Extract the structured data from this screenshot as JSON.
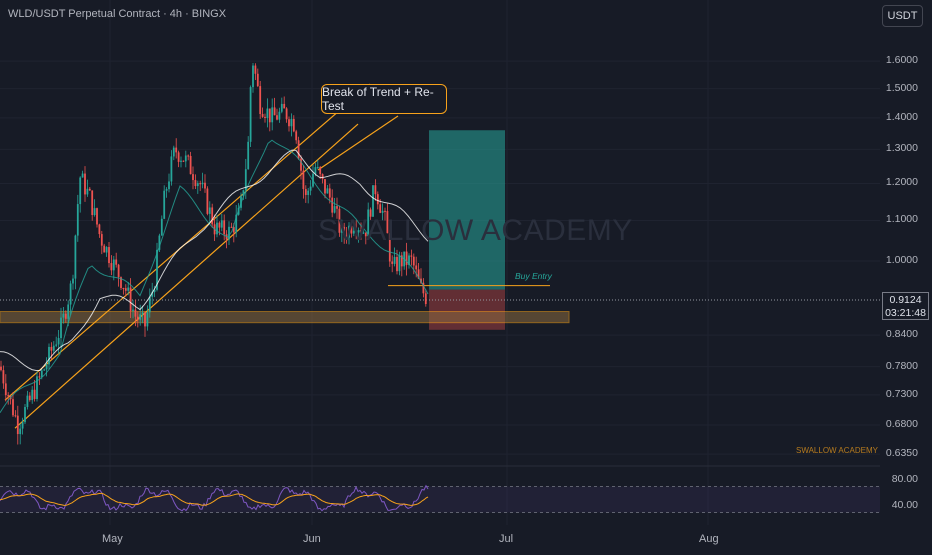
{
  "header": {
    "symbol_title": "WLD/USDT Perpetual Contract · 4h · BINGX",
    "currency_button": "USDT"
  },
  "price_axis": {
    "labels": [
      "1.6000",
      "1.5000",
      "1.4000",
      "1.3000",
      "1.2000",
      "1.1000",
      "1.0000",
      "0.8400",
      "0.7800",
      "0.7300",
      "0.6800",
      "0.6350"
    ],
    "current_price": "0.9124",
    "countdown": "03:21:48"
  },
  "rsi_axis": {
    "labels": [
      "80.00",
      "40.00"
    ]
  },
  "time_axis": {
    "labels": [
      "May",
      "Jun",
      "Jul",
      "Aug"
    ]
  },
  "annotations": {
    "trend_note": "Break of Trend + Re-Test",
    "buy_entry": "Buy Entry",
    "watermark": "SWALLOW ACADEMY",
    "footer_watermark": "SWALLOW ACADEMY"
  },
  "colors": {
    "background": "#171b26",
    "bull": "#26a69a",
    "bear": "#ef5350",
    "accent_orange": "#f7a21b",
    "rsi_line": "#7e57c2",
    "rsi_ma": "#f7a21b"
  },
  "chart_data": {
    "type": "candlestick",
    "title": "WLD/USDT Perpetual Contract · 4h · BINGX",
    "x_ticks": [
      "May",
      "Jun",
      "Jul",
      "Aug"
    ],
    "y_ticks": [
      1.6,
      1.5,
      1.4,
      1.3,
      1.2,
      1.1,
      1.0,
      0.84,
      0.78,
      0.73,
      0.68,
      0.635
    ],
    "ylim": [
      0.62,
      1.7
    ],
    "scale": "log",
    "price_path_anchors": [
      [
        0,
        0.78
      ],
      [
        10,
        0.72
      ],
      [
        18,
        0.68
      ],
      [
        30,
        0.72
      ],
      [
        45,
        0.78
      ],
      [
        62,
        0.86
      ],
      [
        72,
        0.95
      ],
      [
        80,
        1.22
      ],
      [
        90,
        1.16
      ],
      [
        100,
        1.06
      ],
      [
        112,
        1.0
      ],
      [
        125,
        0.94
      ],
      [
        135,
        0.88
      ],
      [
        145,
        0.86
      ],
      [
        155,
        0.96
      ],
      [
        165,
        1.17
      ],
      [
        175,
        1.3
      ],
      [
        185,
        1.27
      ],
      [
        200,
        1.2
      ],
      [
        215,
        1.08
      ],
      [
        230,
        1.07
      ],
      [
        240,
        1.12
      ],
      [
        248,
        1.3
      ],
      [
        252,
        1.62
      ],
      [
        260,
        1.45
      ],
      [
        272,
        1.4
      ],
      [
        285,
        1.42
      ],
      [
        295,
        1.38
      ],
      [
        305,
        1.15
      ],
      [
        315,
        1.25
      ],
      [
        322,
        1.2
      ],
      [
        332,
        1.15
      ],
      [
        342,
        1.06
      ],
      [
        355,
        1.1
      ],
      [
        365,
        1.07
      ],
      [
        375,
        1.19
      ],
      [
        385,
        1.1
      ],
      [
        392,
        0.98
      ],
      [
        400,
        1.0
      ],
      [
        412,
        1.0
      ],
      [
        420,
        0.94
      ],
      [
        428,
        0.9124
      ]
    ],
    "moving_averages": [
      {
        "name": "MA-fast",
        "color": "#26a69a",
        "anchors": [
          [
            0,
            0.7
          ],
          [
            60,
            0.8
          ],
          [
            90,
            1.0
          ],
          [
            140,
            0.92
          ],
          [
            180,
            1.18
          ],
          [
            230,
            1.05
          ],
          [
            270,
            1.35
          ],
          [
            310,
            1.22
          ],
          [
            360,
            1.08
          ],
          [
            395,
            1.02
          ],
          [
            428,
            0.93
          ]
        ]
      },
      {
        "name": "MA-slow",
        "color": "#ffffff",
        "anchors": [
          [
            0,
            0.8
          ],
          [
            40,
            0.78
          ],
          [
            70,
            0.82
          ],
          [
            100,
            0.92
          ],
          [
            140,
            0.9
          ],
          [
            200,
            1.08
          ],
          [
            250,
            1.2
          ],
          [
            295,
            1.29
          ],
          [
            320,
            1.23
          ],
          [
            360,
            1.2
          ],
          [
            400,
            1.12
          ],
          [
            428,
            1.06
          ]
        ]
      }
    ],
    "trend_line": {
      "from": [
        15,
        0.675
      ],
      "to": [
        358,
        1.38
      ]
    },
    "support_zone": [
      0.865,
      0.888
    ],
    "entry_price": 0.935,
    "target_price": 1.36,
    "stop_price": 0.875,
    "rsi": {
      "ylim": [
        20,
        90
      ],
      "bands": [
        70,
        30
      ],
      "labels": [
        80,
        40
      ]
    }
  }
}
